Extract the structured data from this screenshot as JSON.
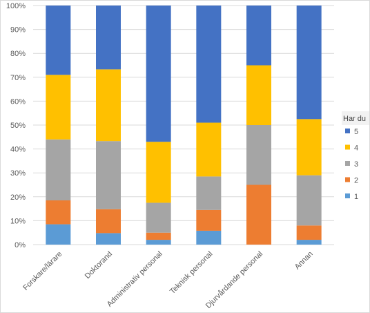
{
  "chart_data": {
    "type": "bar",
    "stacked": true,
    "normalized": true,
    "categories": [
      "Forskare/lärare",
      "Doktorand",
      "Administrativ personal",
      "Teknisk personal",
      "Djurvårdande personal",
      "Annan"
    ],
    "series": [
      {
        "name": "1",
        "color": "#5B9BD5",
        "values": [
          8.5,
          4.8,
          2.0,
          5.8,
          0.0,
          2.0
        ]
      },
      {
        "name": "2",
        "color": "#ED7D31",
        "values": [
          10.0,
          10.0,
          3.0,
          8.7,
          25.0,
          6.0
        ]
      },
      {
        "name": "3",
        "color": "#A5A5A5",
        "values": [
          25.5,
          28.5,
          12.5,
          14.0,
          25.0,
          21.0
        ]
      },
      {
        "name": "4",
        "color": "#FFC000",
        "values": [
          27.0,
          30.0,
          25.5,
          22.5,
          25.0,
          23.5
        ]
      },
      {
        "name": "5",
        "color": "#4472C4",
        "values": [
          29.0,
          26.7,
          57.0,
          49.0,
          25.0,
          47.5
        ]
      }
    ],
    "yticks": [
      "0%",
      "10%",
      "20%",
      "30%",
      "40%",
      "50%",
      "60%",
      "70%",
      "80%",
      "90%",
      "100%"
    ],
    "ylim": [
      0,
      100
    ],
    "grid": true,
    "legend": {
      "title": "Har du",
      "placement": "right",
      "order": [
        "5",
        "4",
        "3",
        "2",
        "1"
      ]
    }
  }
}
